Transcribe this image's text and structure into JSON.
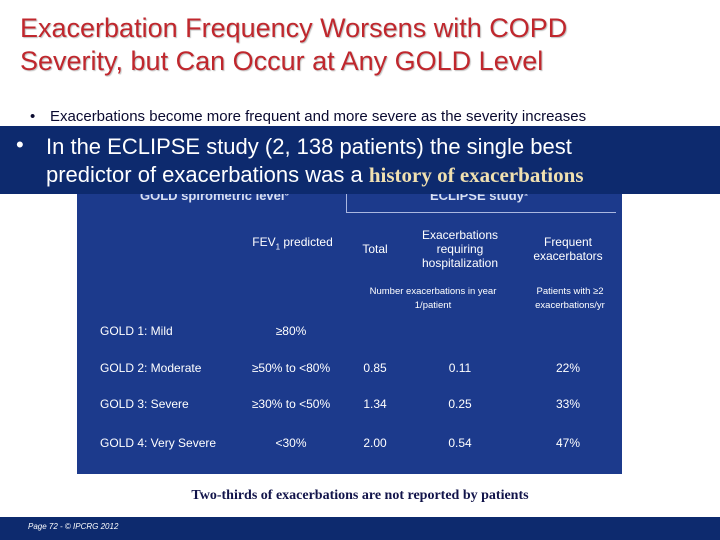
{
  "title_line1": "Exacerbation Frequency Worsens with COPD",
  "title_line2": "Severity, but Can Occur at Any GOLD Level",
  "bullet1": {
    "marker": "•",
    "text": "Exacerbations become more frequent and more severe as the severity increases"
  },
  "banner": {
    "marker": "•",
    "line1": "In the ECLIPSE study (2, 138 patients) the single best",
    "line2_prefix": "predictor of exacerbations was a",
    "line2_highlight": "history of exacerbations"
  },
  "table": {
    "group_header_left": "GOLD spirometric level³",
    "group_header_right": "ECLIPSE study¹",
    "col_fev1_prefix": "FEV",
    "col_fev1_sub": "1",
    "col_fev1_suffix": " predicted",
    "col_total": "Total",
    "col_hosp": "Exacerbations requiring hospitalization",
    "col_freq": "Frequent exacerbators",
    "unit_number": "Number exacerbations in year 1/patient",
    "unit_patients": "Patients with ≥2 exacerbations/yr",
    "rows": [
      {
        "level": "GOLD 1: Mild",
        "fev": "≥80%",
        "total": "",
        "hosp": "",
        "freq": ""
      },
      {
        "level": "GOLD 2: Moderate",
        "fev": "≥50% to <80%",
        "total": "0.85",
        "hosp": "0.11",
        "freq": "22%"
      },
      {
        "level": "GOLD 3: Severe",
        "fev": "≥30% to <50%",
        "total": "1.34",
        "hosp": "0.25",
        "freq": "33%"
      },
      {
        "level": "GOLD 4: Very Severe",
        "fev": "<30%",
        "total": "2.00",
        "hosp": "0.54",
        "freq": "47%"
      }
    ]
  },
  "footnote": "Two-thirds of exacerbations are not reported by patients",
  "footer_text": "Page 72 - © IPCRG 2012",
  "colors": {
    "title": "#c0272d",
    "banner": "#0d2a6e",
    "table": "#1c3a8c",
    "highlight": "#f0e0b0"
  }
}
